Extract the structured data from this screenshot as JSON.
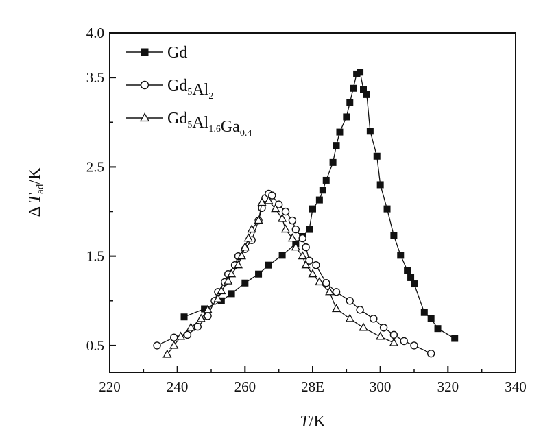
{
  "chart_data": {
    "type": "scatter",
    "xlabel": "T/K",
    "ylabel": "Δ T_ad/K",
    "xlim": [
      220,
      340
    ],
    "ylim": [
      0.2,
      4.0
    ],
    "x_ticks": [
      220,
      240,
      260,
      280,
      300,
      320,
      340
    ],
    "x_tick_labels": [
      "220",
      "240",
      "260",
      "28Е",
      "300",
      "320",
      "340"
    ],
    "y_ticks": [
      0.5,
      1.5,
      2.5,
      3.5,
      4.0
    ],
    "y_tick_labels": [
      "0.5",
      "1.5",
      "2.5",
      "3.5",
      "4.0"
    ],
    "grid": false,
    "legend_position": "top-left",
    "series": [
      {
        "name": "Gd",
        "marker": "filled-square",
        "color": "#111111",
        "points": [
          [
            242,
            0.82
          ],
          [
            248,
            0.91
          ],
          [
            253,
            1.0
          ],
          [
            256,
            1.08
          ],
          [
            260,
            1.2
          ],
          [
            264,
            1.3
          ],
          [
            267,
            1.4
          ],
          [
            271,
            1.51
          ],
          [
            275,
            1.64
          ],
          [
            277,
            1.72
          ],
          [
            279,
            1.8
          ],
          [
            280,
            2.03
          ],
          [
            282,
            2.13
          ],
          [
            283,
            2.24
          ],
          [
            284,
            2.35
          ],
          [
            286,
            2.55
          ],
          [
            287,
            2.74
          ],
          [
            288,
            2.89
          ],
          [
            290,
            3.06
          ],
          [
            291,
            3.22
          ],
          [
            292,
            3.38
          ],
          [
            293,
            3.54
          ],
          [
            294,
            3.56
          ],
          [
            295,
            3.37
          ],
          [
            296,
            3.31
          ],
          [
            297,
            2.9
          ],
          [
            299,
            2.62
          ],
          [
            300,
            2.3
          ],
          [
            302,
            2.03
          ],
          [
            304,
            1.73
          ],
          [
            306,
            1.51
          ],
          [
            308,
            1.34
          ],
          [
            309,
            1.26
          ],
          [
            310,
            1.19
          ],
          [
            313,
            0.87
          ],
          [
            315,
            0.8
          ],
          [
            317,
            0.69
          ],
          [
            322,
            0.58
          ]
        ]
      },
      {
        "name": "Gd5Al2",
        "marker": "open-circle",
        "color": "#111111",
        "points": [
          [
            234,
            0.5
          ],
          [
            239,
            0.59
          ],
          [
            243,
            0.62
          ],
          [
            246,
            0.71
          ],
          [
            249,
            0.83
          ],
          [
            251,
            1.0
          ],
          [
            252,
            1.1
          ],
          [
            254,
            1.21
          ],
          [
            255,
            1.3
          ],
          [
            257,
            1.4
          ],
          [
            258,
            1.5
          ],
          [
            260,
            1.58
          ],
          [
            262,
            1.68
          ],
          [
            264,
            1.9
          ],
          [
            265,
            2.04
          ],
          [
            266,
            2.15
          ],
          [
            267,
            2.2
          ],
          [
            268,
            2.18
          ],
          [
            270,
            2.08
          ],
          [
            272,
            2.0
          ],
          [
            274,
            1.9
          ],
          [
            275,
            1.8
          ],
          [
            277,
            1.7
          ],
          [
            278,
            1.6
          ],
          [
            279,
            1.45
          ],
          [
            281,
            1.4
          ],
          [
            284,
            1.2
          ],
          [
            287,
            1.1
          ],
          [
            291,
            1.0
          ],
          [
            294,
            0.9
          ],
          [
            298,
            0.8
          ],
          [
            301,
            0.7
          ],
          [
            304,
            0.62
          ],
          [
            307,
            0.55
          ],
          [
            310,
            0.5
          ],
          [
            315,
            0.41
          ]
        ]
      },
      {
        "name": "Gd5Al1.6Ga0.4",
        "marker": "open-triangle",
        "color": "#111111",
        "points": [
          [
            237,
            0.4
          ],
          [
            239,
            0.5
          ],
          [
            241,
            0.6
          ],
          [
            244,
            0.7
          ],
          [
            247,
            0.8
          ],
          [
            249,
            0.9
          ],
          [
            252,
            1.02
          ],
          [
            253,
            1.11
          ],
          [
            255,
            1.22
          ],
          [
            256,
            1.3
          ],
          [
            258,
            1.4
          ],
          [
            259,
            1.5
          ],
          [
            260,
            1.6
          ],
          [
            261,
            1.7
          ],
          [
            262,
            1.8
          ],
          [
            264,
            1.9
          ],
          [
            265,
            2.1
          ],
          [
            267,
            2.12
          ],
          [
            269,
            2.03
          ],
          [
            271,
            1.92
          ],
          [
            272,
            1.8
          ],
          [
            274,
            1.7
          ],
          [
            275,
            1.6
          ],
          [
            277,
            1.5
          ],
          [
            278,
            1.4
          ],
          [
            280,
            1.3
          ],
          [
            282,
            1.21
          ],
          [
            285,
            1.1
          ],
          [
            287,
            0.91
          ],
          [
            291,
            0.8
          ],
          [
            295,
            0.7
          ],
          [
            300,
            0.6
          ],
          [
            304,
            0.53
          ]
        ]
      }
    ]
  }
}
